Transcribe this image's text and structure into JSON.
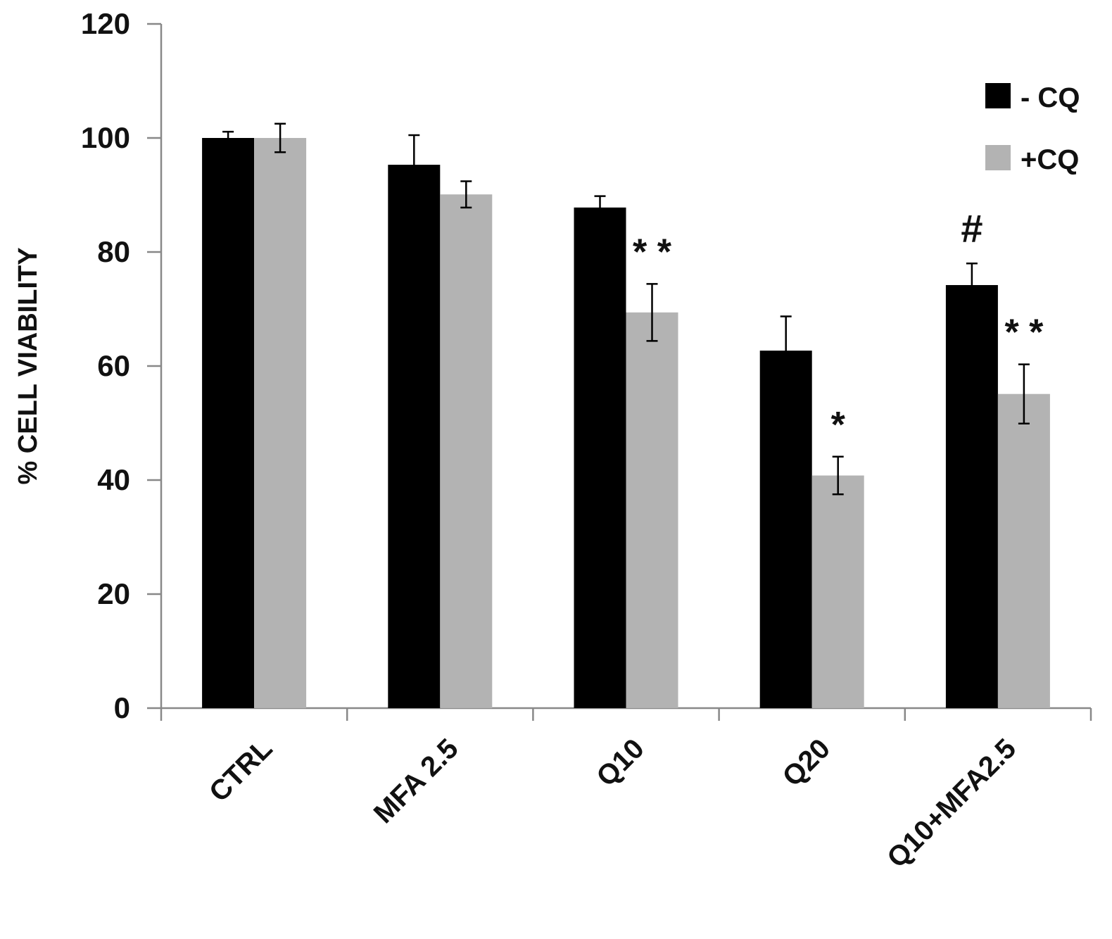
{
  "chart_data": {
    "type": "bar",
    "title": "",
    "xlabel": "",
    "ylabel": "% CELL VIABILITY",
    "ylim": [
      0,
      120
    ],
    "yticks": [
      "0",
      "20",
      "40",
      "60",
      "80",
      "100",
      "120"
    ],
    "grid": false,
    "legend_position": "top-right",
    "categories": [
      "CTRL",
      "MFA 2.5",
      "Q10",
      "Q20",
      "Q10+MFA2.5"
    ],
    "series": [
      {
        "name": "- CQ",
        "color": "#000000",
        "values": [
          100,
          95.3,
          87.8,
          62.7,
          74.2
        ],
        "errors": [
          1.1,
          5.2,
          2.0,
          6.0,
          3.8
        ]
      },
      {
        "name": "+CQ",
        "color": "#b3b3b3",
        "values": [
          100,
          90.1,
          69.4,
          40.8,
          55.1
        ],
        "errors": [
          2.5,
          2.3,
          5.0,
          3.3,
          5.2
        ]
      }
    ],
    "annotations": [
      {
        "category_index": 2,
        "series_index": 1,
        "text": "* *"
      },
      {
        "category_index": 3,
        "series_index": 1,
        "text": "*"
      },
      {
        "category_index": 4,
        "series_index": 0,
        "text": "#"
      },
      {
        "category_index": 4,
        "series_index": 1,
        "text": "* *"
      }
    ]
  }
}
